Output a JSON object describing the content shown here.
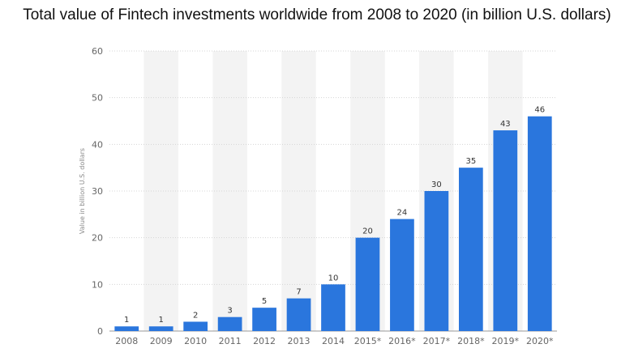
{
  "chart_data": {
    "type": "bar",
    "title": "Total value of Fintech investments worldwide from 2008 to 2020 (in billion U.S. dollars)",
    "xlabel": "",
    "ylabel": "Value in billion U.S. dollars",
    "categories": [
      "2008",
      "2009",
      "2010",
      "2011",
      "2012",
      "2013",
      "2014",
      "2015*",
      "2016*",
      "2017*",
      "2018*",
      "2019*",
      "2020*"
    ],
    "values": [
      1,
      1,
      2,
      3,
      5,
      7,
      10,
      20,
      24,
      30,
      35,
      43,
      46
    ],
    "ylim": [
      0,
      60
    ],
    "yticks": [
      0,
      10,
      20,
      30,
      40,
      50,
      60
    ],
    "grid": true,
    "bar_color": "#2a76dd",
    "band_color": "#f3f3f3"
  }
}
